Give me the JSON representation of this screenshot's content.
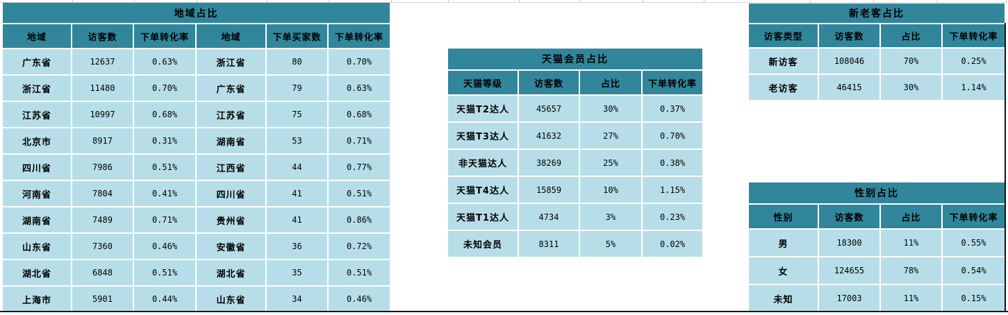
{
  "colors": {
    "header_bg": "#31869B",
    "cell_bg": "#B7DEE8",
    "text": "#000000",
    "gridline": "#c9c9c9",
    "boundary_line": "#141414"
  },
  "tables": {
    "region": {
      "title": "地域占比",
      "headers": [
        "地域",
        "访客数",
        "下单转化率",
        "地域",
        "下单买家数",
        "下单转化率"
      ],
      "rows": [
        [
          "广东省",
          "12637",
          "0.63%",
          "浙江省",
          "80",
          "0.70%"
        ],
        [
          "浙江省",
          "11480",
          "0.70%",
          "广东省",
          "79",
          "0.63%"
        ],
        [
          "江苏省",
          "10997",
          "0.68%",
          "江苏省",
          "75",
          "0.68%"
        ],
        [
          "北京市",
          "8917",
          "0.31%",
          "湖南省",
          "53",
          "0.71%"
        ],
        [
          "四川省",
          "7986",
          "0.51%",
          "江西省",
          "44",
          "0.77%"
        ],
        [
          "河南省",
          "7804",
          "0.41%",
          "四川省",
          "41",
          "0.51%"
        ],
        [
          "湖南省",
          "7489",
          "0.71%",
          "贵州省",
          "41",
          "0.86%"
        ],
        [
          "山东省",
          "7360",
          "0.46%",
          "安徽省",
          "36",
          "0.72%"
        ],
        [
          "湖北省",
          "6848",
          "0.51%",
          "湖北省",
          "35",
          "0.51%"
        ],
        [
          "上海市",
          "5901",
          "0.44%",
          "山东省",
          "34",
          "0.46%"
        ]
      ]
    },
    "tmall": {
      "title": "天猫会员占比",
      "headers": [
        "天猫等级",
        "访客数",
        "占比",
        "下单转化率"
      ],
      "rows": [
        [
          "天猫T2达人",
          "45657",
          "30%",
          "0.37%"
        ],
        [
          "天猫T3达人",
          "41632",
          "27%",
          "0.70%"
        ],
        [
          "非天猫达人",
          "38269",
          "25%",
          "0.38%"
        ],
        [
          "天猫T4达人",
          "15859",
          "10%",
          "1.15%"
        ],
        [
          "天猫T1达人",
          "4734",
          "3%",
          "0.23%"
        ],
        [
          "未知会员",
          "8311",
          "5%",
          "0.02%"
        ]
      ]
    },
    "visitor_type": {
      "title": "新老客占比",
      "headers": [
        "访客类型",
        "访客数",
        "占比",
        "下单转化率"
      ],
      "rows": [
        [
          "新访客",
          "108046",
          "70%",
          "0.25%"
        ],
        [
          "老访客",
          "46415",
          "30%",
          "1.14%"
        ]
      ]
    },
    "gender": {
      "title": "性别占比",
      "headers": [
        "性别",
        "访客数",
        "占比",
        "下单转化率"
      ],
      "rows": [
        [
          "男",
          "18300",
          "11%",
          "0.55%"
        ],
        [
          "女",
          "124655",
          "78%",
          "0.54%"
        ],
        [
          "未知",
          "17003",
          "11%",
          "0.15%"
        ]
      ]
    }
  }
}
